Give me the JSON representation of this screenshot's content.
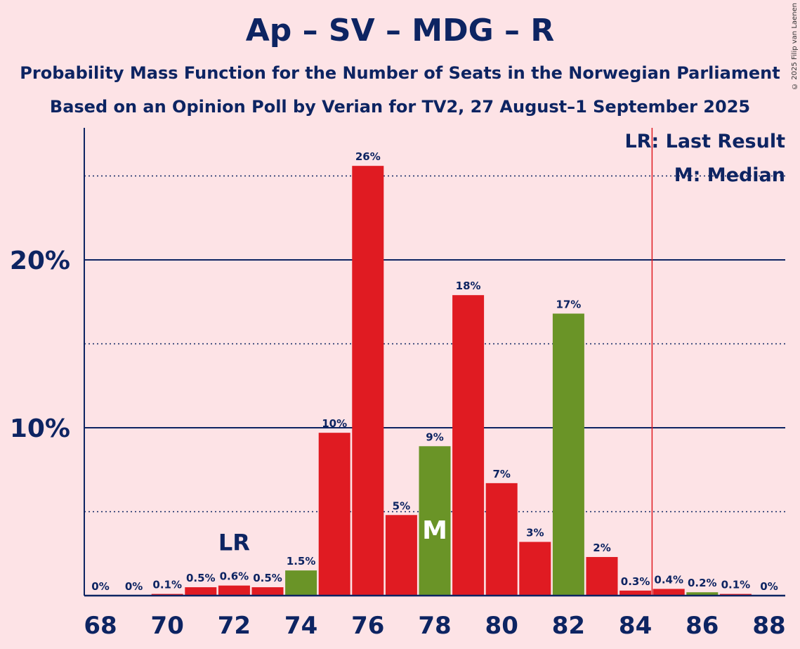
{
  "header": {
    "title": "Ap – SV – MDG – R",
    "subtitle1": "Probability Mass Function for the Number of Seats in the Norwegian Parliament",
    "subtitle2": "Based on an Opinion Poll by Verian for TV2, 27 August–1 September 2025",
    "copyright": "© 2025 Filip van Laenen"
  },
  "colors": {
    "background": "#fde3e6",
    "text": "#0d2462",
    "red": "#e01b22",
    "green": "#6a9427",
    "last_result_line": "#e01b22"
  },
  "chart_data": {
    "type": "bar",
    "title": "Ap – SV – MDG – R",
    "xlabel": "",
    "ylabel": "",
    "ylim": [
      0,
      27.5
    ],
    "yticks": [
      10,
      20
    ],
    "ytick_labels": [
      "10%",
      "20%"
    ],
    "dotted_lines": [
      5,
      15,
      25
    ],
    "categories": [
      68,
      69,
      70,
      71,
      72,
      73,
      74,
      75,
      76,
      77,
      78,
      79,
      80,
      81,
      82,
      83,
      84,
      85,
      86,
      87,
      88
    ],
    "xtick_labels": [
      "68",
      "70",
      "72",
      "74",
      "76",
      "78",
      "80",
      "82",
      "84",
      "86",
      "88"
    ],
    "values": [
      0,
      0,
      0.1,
      0.5,
      0.6,
      0.5,
      1.5,
      9.7,
      25.6,
      4.8,
      8.9,
      17.9,
      6.7,
      3.2,
      16.8,
      2.3,
      0.3,
      0.4,
      0.2,
      0.1,
      0
    ],
    "labels": [
      "0%",
      "0%",
      "0.1%",
      "0.5%",
      "0.6%",
      "0.5%",
      "1.5%",
      "10%",
      "26%",
      "5%",
      "9%",
      "18%",
      "7%",
      "3%",
      "17%",
      "2%",
      "0.3%",
      "0.4%",
      "0.2%",
      "0.1%",
      "0%"
    ],
    "bar_colors": [
      "red",
      "red",
      "red",
      "red",
      "red",
      "red",
      "green",
      "red",
      "red",
      "red",
      "green",
      "red",
      "red",
      "red",
      "green",
      "red",
      "red",
      "red",
      "green",
      "red",
      "red"
    ],
    "last_result_seat": 72,
    "last_result_marker": "LR",
    "median_seat": 78,
    "median_marker": "M",
    "majority_line_seat": 85,
    "legend": {
      "position": "top-right",
      "items": [
        "LR: Last Result",
        "M: Median"
      ]
    }
  }
}
